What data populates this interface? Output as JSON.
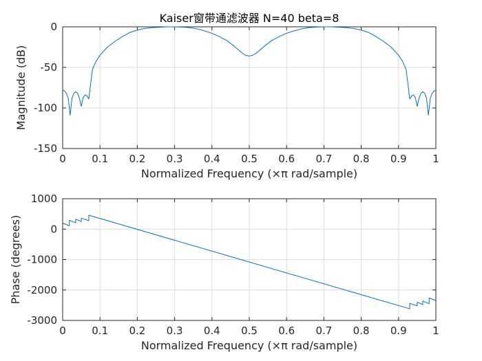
{
  "chart_data": [
    {
      "type": "line",
      "title": "Kaiser窗带通滤波器 N=40 beta=8",
      "xlabel": "Normalized Frequency  (×π rad/sample)",
      "ylabel": "Magnitude (dB)",
      "xlim": [
        0,
        1
      ],
      "ylim": [
        -150,
        0
      ],
      "xticks": [
        "0",
        "0.1",
        "0.2",
        "0.3",
        "0.4",
        "0.5",
        "0.6",
        "0.7",
        "0.8",
        "0.9",
        "1"
      ],
      "yticks": [
        "0",
        "-50",
        "-100",
        "-150"
      ],
      "grid": true,
      "color": "#0072BD",
      "series": [
        {
          "x": [
            0,
            0.005,
            0.01,
            0.015,
            0.02,
            0.025,
            0.03,
            0.035,
            0.04,
            0.045,
            0.05,
            0.055,
            0.06,
            0.065,
            0.07,
            0.075,
            0.08,
            0.09,
            0.1,
            0.12,
            0.14,
            0.16,
            0.18,
            0.2,
            0.22,
            0.24,
            0.26,
            0.28,
            0.3,
            0.32,
            0.34,
            0.36,
            0.38,
            0.4,
            0.42,
            0.44,
            0.46,
            0.48,
            0.49,
            0.5,
            0.51,
            0.52,
            0.54,
            0.56,
            0.58,
            0.6,
            0.62,
            0.64,
            0.66,
            0.68,
            0.7,
            0.72,
            0.74,
            0.76,
            0.78,
            0.8,
            0.82,
            0.84,
            0.86,
            0.88,
            0.9,
            0.91,
            0.92,
            0.925,
            0.93,
            0.935,
            0.94,
            0.945,
            0.95,
            0.955,
            0.96,
            0.965,
            0.97,
            0.975,
            0.98,
            0.985,
            0.99,
            0.995,
            1
          ],
          "y": [
            -78,
            -79,
            -82,
            -88,
            -109,
            -88,
            -82,
            -80,
            -82,
            -88,
            -98,
            -87,
            -84,
            -85,
            -89,
            -70,
            -52,
            -42,
            -35,
            -25,
            -18,
            -12,
            -7,
            -4,
            -2,
            -1,
            -0.5,
            0,
            0,
            -0.3,
            -1,
            -2.5,
            -5,
            -8,
            -12,
            -17,
            -24,
            -32,
            -35,
            -36,
            -35,
            -32,
            -24,
            -17,
            -12,
            -8,
            -5,
            -2.5,
            -1,
            -0.3,
            0,
            0,
            -0.5,
            -1,
            -2,
            -4,
            -7,
            -12,
            -18,
            -25,
            -35,
            -42,
            -52,
            -70,
            -89,
            -85,
            -84,
            -87,
            -98,
            -88,
            -82,
            -80,
            -82,
            -88,
            -109,
            -88,
            -82,
            -79,
            -78
          ]
        }
      ]
    },
    {
      "type": "line",
      "title": "",
      "xlabel": "Normalized Frequency  (×π rad/sample)",
      "ylabel": "Phase (degrees)",
      "xlim": [
        0,
        1
      ],
      "ylim": [
        -3000,
        1000
      ],
      "xticks": [
        "0",
        "0.1",
        "0.2",
        "0.3",
        "0.4",
        "0.5",
        "0.6",
        "0.7",
        "0.8",
        "0.9",
        "1"
      ],
      "yticks": [
        "1000",
        "0",
        "-1000",
        "-2000",
        "-3000"
      ],
      "grid": true,
      "color": "#0072BD",
      "series": [
        {
          "x": [
            0,
            0.018,
            0.018,
            0.035,
            0.035,
            0.05,
            0.05,
            0.07,
            0.07,
            0.075,
            0.925,
            0.93,
            0.93,
            0.95,
            0.95,
            0.965,
            0.965,
            0.982,
            0.982,
            1
          ],
          "y": [
            200,
            110,
            290,
            210,
            330,
            250,
            360,
            280,
            460,
            440,
            -2600,
            -2620,
            -2440,
            -2520,
            -2400,
            -2480,
            -2360,
            -2450,
            -2260,
            -2350
          ]
        }
      ]
    }
  ]
}
